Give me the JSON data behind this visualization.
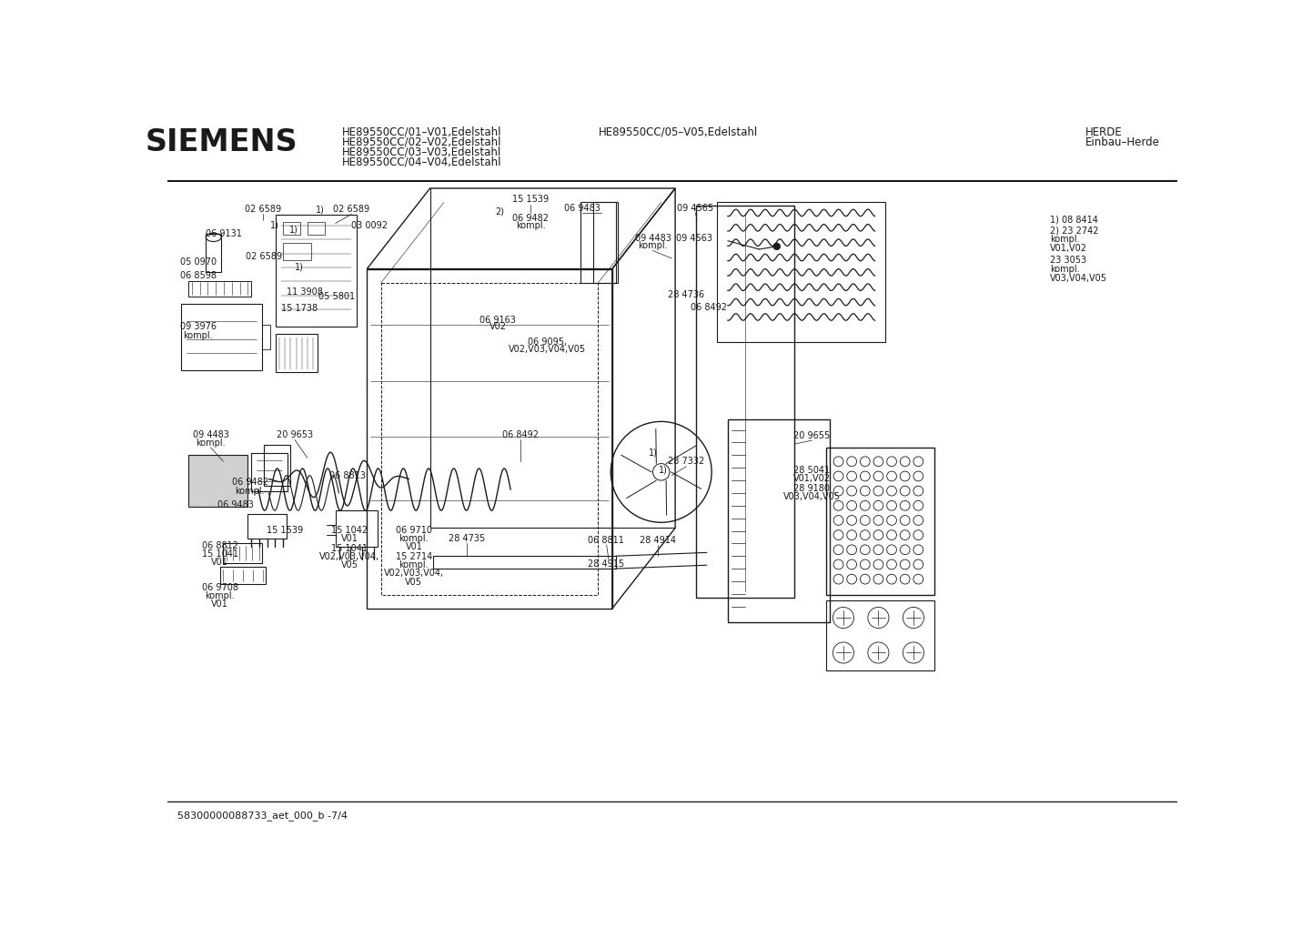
{
  "title_siemens": "SIEMENS",
  "header_line1": "HE89550CC/01–V01,Edelstahl",
  "header_line2": "HE89550CC/02–V02,Edelstahl",
  "header_line3": "HE89550CC/03–V03,Edelstahl",
  "header_line4": "HE89550CC/04–V04,Edelstahl",
  "header_center": "HE89550CC/05–V05,Edelstahl",
  "header_right1": "HERDE",
  "header_right2": "Einbau–Herde",
  "footer_text": "58300000088733_aet_000_b -7/4",
  "bg_color": "#ffffff",
  "text_color": "#1a1a1a",
  "line_color": "#1a1a1a",
  "fig_width": 14.42,
  "fig_height": 10.19,
  "dpi": 100
}
